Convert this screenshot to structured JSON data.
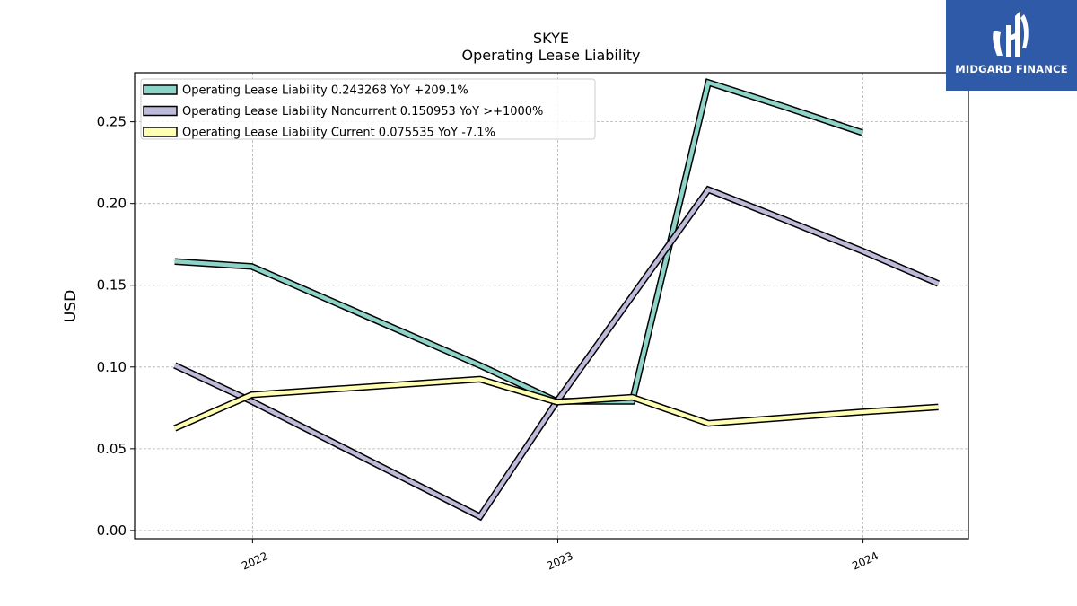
{
  "brand": {
    "name": "MIDGARD FINANCE",
    "color": "#2e5aa8"
  },
  "chart_data": {
    "type": "line",
    "title": "SKYE",
    "subtitle": "Operating Lease Liability",
    "xlabel": "",
    "ylabel": "USD",
    "ylim": [
      -0.005,
      0.28
    ],
    "yticks": [
      0.0,
      0.05,
      0.1,
      0.15,
      0.2,
      0.25
    ],
    "ytick_labels": [
      "0.00",
      "0.05",
      "0.10",
      "0.15",
      "0.20",
      "0.25"
    ],
    "xticks": [
      "2022-01-01",
      "2023-01-01",
      "2024-01-01"
    ],
    "xtick_labels": [
      "2022",
      "2023",
      "2024"
    ],
    "xlim": [
      "2021-08-13",
      "2024-05-06"
    ],
    "grid": true,
    "legend_position": "top-left",
    "series": [
      {
        "name": "Operating Lease Liability",
        "legend_label": "Operating Lease Liability  0.243268 YoY +209.1%",
        "color": "#8dd3c7",
        "points": [
          [
            "2021-09-30",
            0.1645
          ],
          [
            "2021-12-31",
            0.1615
          ],
          [
            "2022-09-30",
            0.101
          ],
          [
            "2022-12-31",
            0.079
          ],
          [
            "2023-03-31",
            0.079
          ],
          [
            "2023-06-30",
            0.274
          ],
          [
            "2023-09-30",
            0.259
          ],
          [
            "2023-12-31",
            0.2433
          ]
        ]
      },
      {
        "name": "Operating Lease Liability Noncurrent",
        "legend_label": "Operating Lease Liability Noncurrent  0.150953 YoY >+1000%",
        "color": "#bebada",
        "points": [
          [
            "2021-09-30",
            0.101
          ],
          [
            "2021-12-31",
            0.079
          ],
          [
            "2022-09-30",
            0.0085
          ],
          [
            "2022-12-31",
            0.079
          ],
          [
            "2023-06-30",
            0.2085
          ],
          [
            "2023-09-30",
            0.19
          ],
          [
            "2023-12-31",
            0.171
          ],
          [
            "2024-03-31",
            0.151
          ]
        ]
      },
      {
        "name": "Operating Lease Liability Current",
        "legend_label": "Operating Lease Liability Current  0.075535 YoY -7.1%",
        "color": "#ffffb3",
        "points": [
          [
            "2021-09-30",
            0.0625
          ],
          [
            "2021-12-31",
            0.083
          ],
          [
            "2022-09-30",
            0.0925
          ],
          [
            "2022-12-31",
            0.0785
          ],
          [
            "2023-03-31",
            0.0815
          ],
          [
            "2023-06-30",
            0.0655
          ],
          [
            "2023-09-30",
            0.069
          ],
          [
            "2023-12-31",
            0.0725
          ],
          [
            "2024-03-31",
            0.0755
          ]
        ]
      }
    ]
  }
}
